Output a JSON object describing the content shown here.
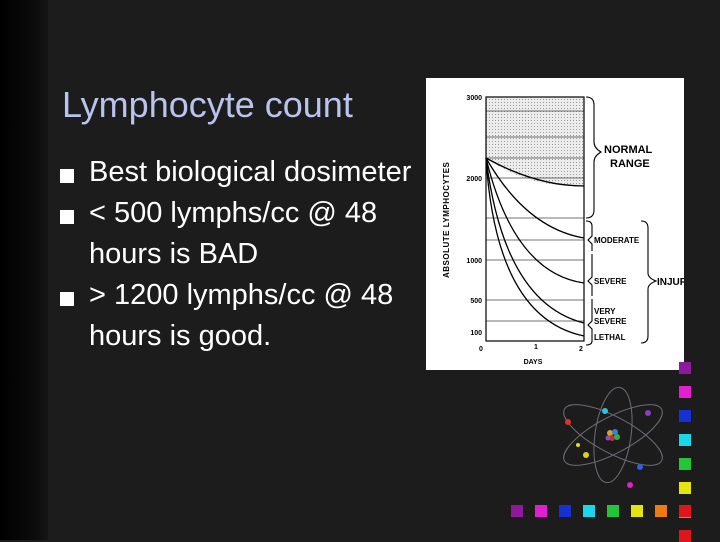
{
  "slide": {
    "title": "Lymphocyte count",
    "bullets": [
      "Best biological dosimeter",
      "< 500 lymphs/cc @ 48 hours is BAD",
      "> 1200 lymphs/cc @ 48 hours is good."
    ]
  },
  "figure": {
    "y_axis_label": "ABSOLUTE LYMPHOCYTES",
    "y_ticks": [
      "3000",
      "2000",
      "1000",
      "500",
      "100"
    ],
    "x_ticks": [
      "0",
      "1",
      "2"
    ],
    "x_axis_label": "DAYS",
    "normal_range_label": [
      "NORMAL",
      "RANGE"
    ],
    "zone_labels": {
      "moderate": "MODERATE",
      "severe": "SEVERE",
      "very_severe": [
        "VERY",
        "SEVERE"
      ],
      "lethal": "LETHAL"
    },
    "injury_label": "INJURY"
  },
  "decoration": {
    "square_colors": [
      "#8d1a9c",
      "#e21fd0",
      "#1531d6",
      "#19d6e8",
      "#22c43a",
      "#e4e40e",
      "#ee7a12",
      "#e0151b"
    ]
  }
}
